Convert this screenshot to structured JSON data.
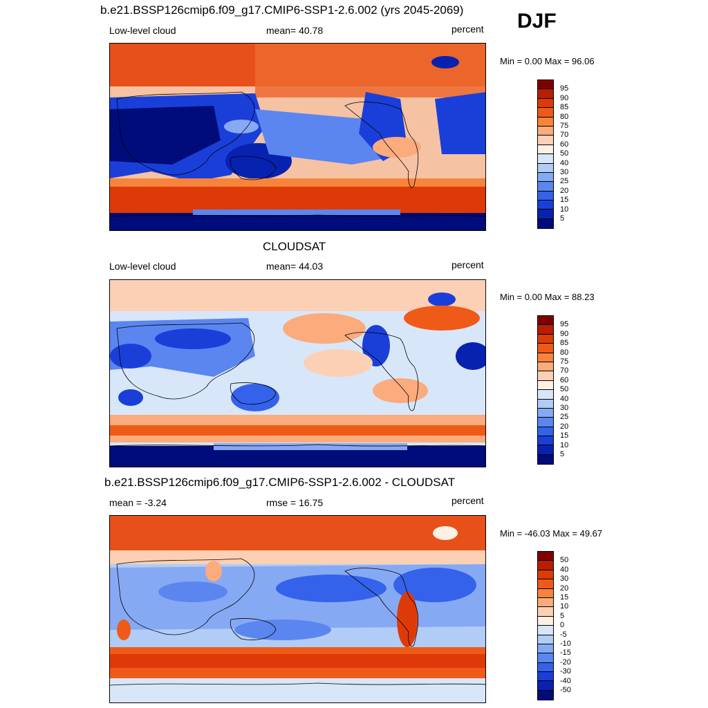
{
  "figure": {
    "season": "DJF",
    "panels": [
      {
        "id": "model",
        "title": "b.e21.BSSP126cmip6.f09_g17.CMIP6-SSP1-2.6.002 (yrs 2045-2069)",
        "left_label": "Low-level cloud",
        "center_label": "mean=  40.78",
        "right_label": "percent",
        "minmax": "Min =    0.00 Max =  96.06",
        "colorbar": {
          "ticks": [
            "95",
            "90",
            "85",
            "80",
            "75",
            "70",
            "60",
            "50",
            "40",
            "30",
            "25",
            "20",
            "15",
            "10",
            "5"
          ],
          "colors": [
            "#800000",
            "#b81e00",
            "#de3a08",
            "#f05a18",
            "#f7843c",
            "#fbab7c",
            "#fcd0b4",
            "#fdf0e4",
            "#d8e6f9",
            "#b1ccf6",
            "#86a9f4",
            "#5b86f0",
            "#3562ea",
            "#1a3fd9",
            "#0822b0",
            "#000c7a"
          ]
        }
      },
      {
        "id": "obs",
        "title": "CLOUDSAT",
        "left_label": "Low-level cloud",
        "center_label": "mean=  44.03",
        "right_label": "percent",
        "minmax": "Min =    0.00 Max =  88.23",
        "colorbar": {
          "ticks": [
            "95",
            "90",
            "85",
            "80",
            "75",
            "70",
            "60",
            "50",
            "40",
            "30",
            "25",
            "20",
            "15",
            "10",
            "5"
          ],
          "colors": [
            "#800000",
            "#b81e00",
            "#de3a08",
            "#f05a18",
            "#f7843c",
            "#fbab7c",
            "#fcd0b4",
            "#fdf0e4",
            "#d8e6f9",
            "#b1ccf6",
            "#86a9f4",
            "#5b86f0",
            "#3562ea",
            "#1a3fd9",
            "#0822b0",
            "#000c7a"
          ]
        }
      },
      {
        "id": "diff",
        "title": "b.e21.BSSP126cmip6.f09_g17.CMIP6-SSP1-2.6.002 - CLOUDSAT",
        "left_label": "mean =  -3.24",
        "center_label": "rmse =  16.75",
        "right_label": "percent",
        "minmax": "Min = -46.03 Max =  49.67",
        "colorbar": {
          "ticks": [
            "50",
            "40",
            "30",
            "20",
            "15",
            "10",
            "5",
            "0",
            "-5",
            "-10",
            "-15",
            "-20",
            "-30",
            "-40",
            "-50"
          ],
          "colors": [
            "#800000",
            "#b81e00",
            "#de3a08",
            "#f05a18",
            "#f7843c",
            "#fbab7c",
            "#fcd0b4",
            "#fdf0e4",
            "#d8e6f9",
            "#b1ccf6",
            "#86a9f4",
            "#5b86f0",
            "#3562ea",
            "#1a3fd9",
            "#0822b0",
            "#000c7a"
          ]
        }
      }
    ]
  }
}
